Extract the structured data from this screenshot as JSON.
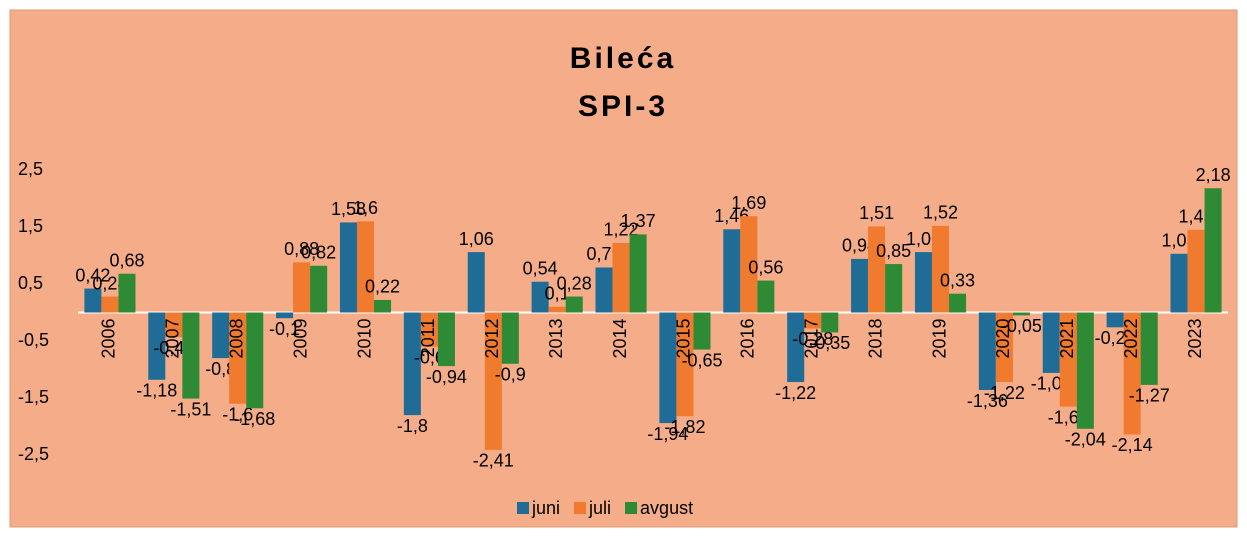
{
  "chart_data": {
    "type": "bar",
    "title": [
      "Bileća",
      "SPI-3"
    ],
    "categories": [
      "2006",
      "2007",
      "2008",
      "2009",
      "2010",
      "2011",
      "2012",
      "2013",
      "2014",
      "2015",
      "2016",
      "2017",
      "2018",
      "2019",
      "2020",
      "2021",
      "2022",
      "2023"
    ],
    "series": [
      {
        "name": "juni",
        "color": "#1f6d97",
        "values": [
          0.42,
          -1.18,
          -0.8,
          -0.1,
          1.58,
          -1.8,
          1.06,
          0.54,
          0.79,
          -1.94,
          1.46,
          -1.22,
          0.94,
          1.06,
          -1.36,
          -1.06,
          -0.26,
          1.03
        ],
        "value_labels": [
          "0,42",
          "-1,18",
          "-0,8",
          "-0,1",
          "1,58",
          "-1,8",
          "1,06",
          "0,54",
          "0,79",
          "-1,94",
          "1,46",
          "-1,22",
          "0,94",
          "1,06",
          "-1,36",
          "-1,06",
          "-0,26",
          "1,03"
        ]
      },
      {
        "name": "juli",
        "color": "#f07a2e",
        "values": [
          0.28,
          -0.43,
          -1.6,
          0.88,
          1.6,
          -0.6,
          -2.41,
          0.1,
          1.22,
          -1.82,
          1.69,
          -0.28,
          1.51,
          1.52,
          -1.22,
          -1.65,
          -2.14,
          1.45
        ],
        "value_labels": [
          "0,28",
          "-0,43",
          "-1,6",
          "0,88",
          "1,6",
          "-0,6",
          "-2,41",
          "0,1",
          "1,22",
          "-1,82",
          "1,69",
          "-0,28",
          "1,51",
          "1,52",
          "-1,22",
          "-1,65",
          "-2,14",
          "1,45"
        ]
      },
      {
        "name": "avgust",
        "color": "#2f8a35",
        "values": [
          0.68,
          -1.51,
          -1.68,
          0.82,
          0.22,
          -0.94,
          -0.9,
          0.28,
          1.37,
          -0.65,
          0.56,
          -0.35,
          0.85,
          0.33,
          -0.05,
          -2.04,
          -1.27,
          2.18
        ],
        "value_labels": [
          "0,68",
          "-1,51",
          "-1,68",
          "0,82",
          "0,22",
          "-0,94",
          "-0,9",
          "0,28",
          "1,37",
          "-0,65",
          "0,56",
          "-0,35",
          "0,85",
          "0,33",
          "-0,05",
          "-2,04",
          "-1,27",
          "2,18"
        ]
      }
    ],
    "ylim": [
      -2.5,
      2.5
    ],
    "yticks": [
      {
        "value": -2.5,
        "label": "-2,5"
      },
      {
        "value": -1.5,
        "label": "-1,5"
      },
      {
        "value": -0.5,
        "label": "-0,5"
      },
      {
        "value": 0.5,
        "label": "0,5"
      },
      {
        "value": 1.5,
        "label": "1,5"
      },
      {
        "value": 2.5,
        "label": "2,5"
      }
    ],
    "legend": "bottom"
  }
}
